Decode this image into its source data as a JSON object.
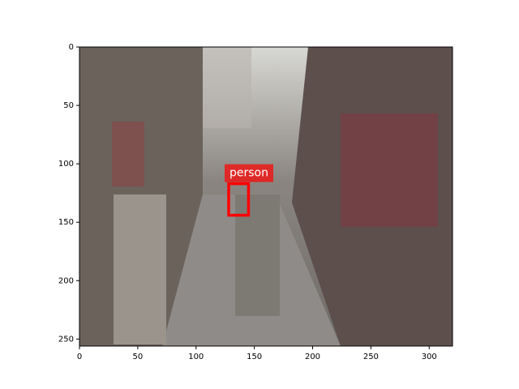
{
  "chart_data": {
    "type": "image",
    "xlim": [
      0,
      320
    ],
    "ylim": [
      256,
      0
    ],
    "xticks": [
      0,
      50,
      100,
      150,
      200,
      250,
      300
    ],
    "yticks": [
      0,
      50,
      100,
      150,
      200,
      250
    ],
    "boxes": [
      {
        "label": "person",
        "color": "#ff0000",
        "x0": 128,
        "y0": 117,
        "x1": 145,
        "y1": 144
      }
    ]
  }
}
